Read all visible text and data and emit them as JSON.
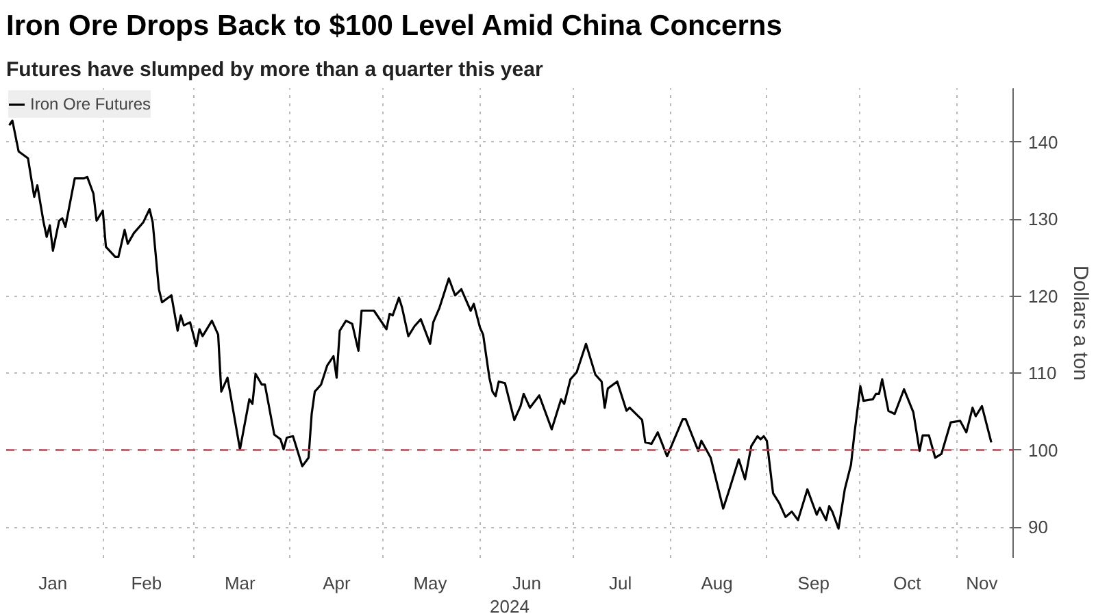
{
  "chart_data": {
    "type": "line",
    "title": "Iron Ore Drops Back to $100 Level Amid China Concerns",
    "subtitle": "Futures have slumped by more than a quarter this year",
    "xlabel": "2024",
    "ylabel": "Dollars a ton",
    "xlim": [
      "2024-01-01",
      "2024-11-19"
    ],
    "xticks": [
      {
        "value": "2024-01-16",
        "label": "Jan"
      },
      {
        "value": "2024-02-01",
        "label": null
      },
      {
        "value": "2024-02-15",
        "label": "Feb"
      },
      {
        "value": "2024-03-01",
        "label": null
      },
      {
        "value": "2024-03-16",
        "label": "Mar"
      },
      {
        "value": "2024-04-01",
        "label": null
      },
      {
        "value": "2024-04-16",
        "label": "Apr"
      },
      {
        "value": "2024-05-01",
        "label": null
      },
      {
        "value": "2024-05-16",
        "label": "May"
      },
      {
        "value": "2024-06-01",
        "label": null
      },
      {
        "value": "2024-06-16",
        "label": "Jun"
      },
      {
        "value": "2024-07-01",
        "label": null
      },
      {
        "value": "2024-07-16",
        "label": "Jul"
      },
      {
        "value": "2024-08-01",
        "label": null
      },
      {
        "value": "2024-08-16",
        "label": "Aug"
      },
      {
        "value": "2024-09-01",
        "label": null
      },
      {
        "value": "2024-09-16",
        "label": "Sep"
      },
      {
        "value": "2024-10-01",
        "label": null
      },
      {
        "value": "2024-10-16",
        "label": "Oct"
      },
      {
        "value": "2024-11-01",
        "label": null
      },
      {
        "value": "2024-11-09",
        "label": "Nov"
      }
    ],
    "ylim": [
      86,
      147
    ],
    "yticks": [
      90,
      100,
      110,
      120,
      130,
      140
    ],
    "grid": true,
    "legend": "top left",
    "ref_lines": [
      {
        "axis": "y",
        "value": 100,
        "color": "#b04a5a",
        "line_style": "dashed"
      }
    ],
    "series": [
      {
        "name": "Iron Ore Futures",
        "color": "#000000",
        "x": [
          "2024-01-02",
          "2024-01-03",
          "2024-01-05",
          "2024-01-08",
          "2024-01-10",
          "2024-01-11",
          "2024-01-13",
          "2024-01-14",
          "2024-01-15",
          "2024-01-16",
          "2024-01-18",
          "2024-01-19",
          "2024-01-20",
          "2024-01-23",
          "2024-01-26",
          "2024-01-27",
          "2024-01-29",
          "2024-01-30",
          "2024-02-01",
          "2024-02-02",
          "2024-02-05",
          "2024-02-06",
          "2024-02-08",
          "2024-02-09",
          "2024-02-11",
          "2024-02-14",
          "2024-02-16",
          "2024-02-17",
          "2024-02-19",
          "2024-02-20",
          "2024-02-23",
          "2024-02-25",
          "2024-02-26",
          "2024-02-27",
          "2024-02-29",
          "2024-03-02",
          "2024-03-03",
          "2024-03-04",
          "2024-03-07",
          "2024-03-09",
          "2024-03-10",
          "2024-03-12",
          "2024-03-16",
          "2024-03-19",
          "2024-03-20",
          "2024-03-21",
          "2024-03-23",
          "2024-03-24",
          "2024-03-27",
          "2024-03-29",
          "2024-03-30",
          "2024-03-31",
          "2024-04-02",
          "2024-04-05",
          "2024-04-07",
          "2024-04-08",
          "2024-04-09",
          "2024-04-11",
          "2024-04-13",
          "2024-04-15",
          "2024-04-16",
          "2024-04-17",
          "2024-04-19",
          "2024-04-21",
          "2024-04-23",
          "2024-04-24",
          "2024-04-28",
          "2024-05-02",
          "2024-05-03",
          "2024-05-04",
          "2024-05-06",
          "2024-05-07",
          "2024-05-09",
          "2024-05-11",
          "2024-05-13",
          "2024-05-16",
          "2024-05-17",
          "2024-05-19",
          "2024-05-22",
          "2024-05-24",
          "2024-05-26",
          "2024-05-29",
          "2024-05-30",
          "2024-06-01",
          "2024-06-02",
          "2024-06-04",
          "2024-06-05",
          "2024-06-06",
          "2024-06-07",
          "2024-06-09",
          "2024-06-12",
          "2024-06-14",
          "2024-06-15",
          "2024-06-17",
          "2024-06-20",
          "2024-06-21",
          "2024-06-24",
          "2024-06-27",
          "2024-06-28",
          "2024-06-30",
          "2024-07-02",
          "2024-07-05",
          "2024-07-08",
          "2024-07-10",
          "2024-07-11",
          "2024-07-12",
          "2024-07-15",
          "2024-07-18",
          "2024-07-19",
          "2024-07-23",
          "2024-07-24",
          "2024-07-26",
          "2024-07-28",
          "2024-07-31",
          "2024-08-05",
          "2024-08-06",
          "2024-08-10",
          "2024-08-11",
          "2024-08-14",
          "2024-08-18",
          "2024-08-20",
          "2024-08-23",
          "2024-08-25",
          "2024-08-27",
          "2024-08-29",
          "2024-08-30",
          "2024-08-31",
          "2024-09-01",
          "2024-09-03",
          "2024-09-05",
          "2024-09-07",
          "2024-09-09",
          "2024-09-11",
          "2024-09-14",
          "2024-09-17",
          "2024-09-18",
          "2024-09-20",
          "2024-09-21",
          "2024-09-22",
          "2024-09-24",
          "2024-09-26",
          "2024-09-28",
          "2024-09-29",
          "2024-10-01",
          "2024-10-02",
          "2024-10-05",
          "2024-10-06",
          "2024-10-07",
          "2024-10-08",
          "2024-10-10",
          "2024-10-12",
          "2024-10-15",
          "2024-10-18",
          "2024-10-20",
          "2024-10-21",
          "2024-10-23",
          "2024-10-25",
          "2024-10-27",
          "2024-10-30",
          "2024-11-02",
          "2024-11-04",
          "2024-11-06",
          "2024-11-07",
          "2024-11-09",
          "2024-11-12"
        ],
        "values": [
          142.2,
          142.8,
          138.8,
          137.9,
          132.9,
          134.4,
          129.6,
          127.7,
          129.2,
          125.9,
          129.8,
          130.1,
          129.0,
          135.3,
          135.3,
          135.5,
          133.3,
          129.8,
          131.1,
          126.4,
          125.1,
          125.1,
          128.6,
          126.8,
          128.2,
          129.6,
          131.3,
          129.6,
          120.9,
          119.2,
          120.1,
          115.5,
          117.5,
          116.2,
          116.6,
          113.5,
          115.7,
          114.8,
          116.8,
          115.0,
          107.6,
          109.4,
          100.1,
          106.6,
          106.0,
          109.9,
          108.5,
          108.5,
          102.0,
          101.4,
          100.1,
          101.6,
          101.8,
          97.9,
          99.0,
          104.7,
          107.6,
          108.5,
          111.0,
          112.2,
          109.4,
          115.5,
          116.8,
          116.4,
          112.9,
          118.1,
          118.1,
          115.7,
          117.7,
          117.5,
          119.8,
          118.5,
          114.8,
          116.1,
          117.0,
          113.8,
          116.6,
          118.5,
          122.3,
          120.1,
          120.9,
          118.1,
          119.0,
          115.9,
          115.0,
          109.4,
          107.6,
          107.0,
          108.9,
          108.7,
          103.9,
          105.7,
          107.3,
          105.5,
          107.1,
          106.0,
          102.7,
          106.6,
          106.0,
          109.2,
          110.1,
          113.8,
          109.8,
          108.9,
          105.5,
          108.0,
          108.9,
          105.1,
          105.5,
          103.9,
          101.0,
          100.8,
          102.3,
          99.2,
          104.0,
          104.0,
          99.9,
          101.2,
          99.0,
          92.4,
          94.9,
          98.8,
          96.2,
          100.5,
          101.8,
          101.4,
          101.8,
          101.2,
          94.4,
          93.1,
          91.3,
          92.0,
          90.9,
          94.9,
          91.6,
          92.5,
          90.9,
          92.7,
          92.0,
          89.8,
          94.9,
          98.1,
          101.8,
          108.3,
          106.4,
          106.6,
          107.3,
          107.3,
          109.2,
          105.1,
          104.7,
          107.9,
          104.9,
          99.9,
          101.9,
          101.9,
          99.0,
          99.5,
          103.6,
          103.8,
          102.3,
          105.5,
          104.4,
          105.7,
          101.0
        ]
      }
    ]
  }
}
